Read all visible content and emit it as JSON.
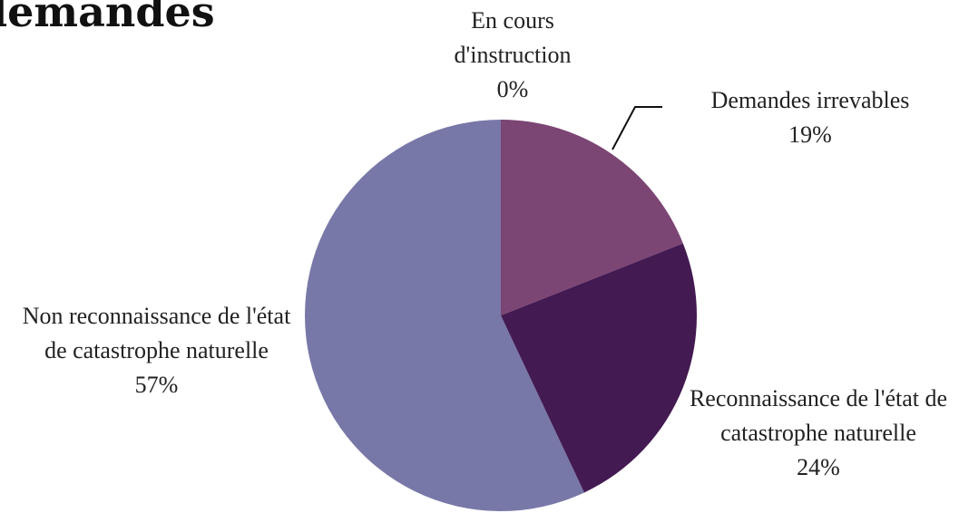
{
  "chart_data": {
    "type": "pie",
    "title": "demandes",
    "categories": [
      "En cours d'instruction",
      "Demandes irrevables",
      "Reconnaissance de l'état de catastrophe naturelle",
      "Non reconnaissance de l'état de catastrophe naturelle"
    ],
    "values": [
      0,
      19,
      24,
      57
    ],
    "value_labels": [
      "0%",
      "19%",
      "24%",
      "57%"
    ],
    "colors": [
      "#8a5a86",
      "#7b4574",
      "#441a52",
      "#7878a8"
    ]
  }
}
